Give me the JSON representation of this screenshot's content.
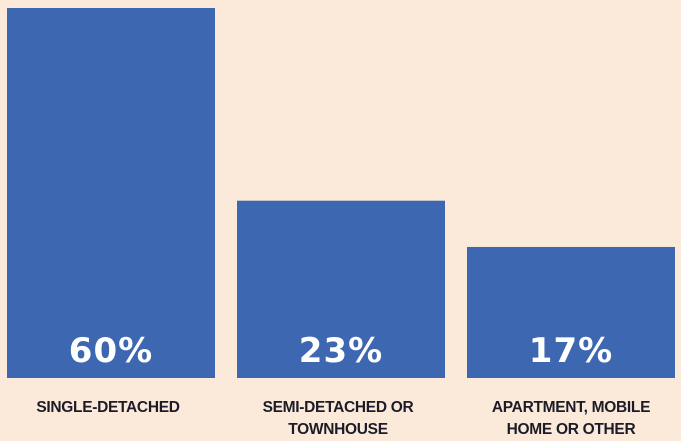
{
  "chart_data": {
    "type": "bar",
    "categories": [
      "SINGLE-DETACHED",
      "SEMI-DETACHED OR TOWNHOUSE",
      "APARTMENT, MOBILE HOME OR OTHER"
    ],
    "values": [
      60,
      23,
      17
    ],
    "value_labels": [
      "60%",
      "23%",
      "17%"
    ],
    "color": "#3d67b1",
    "ylim": [
      0,
      48
    ]
  }
}
